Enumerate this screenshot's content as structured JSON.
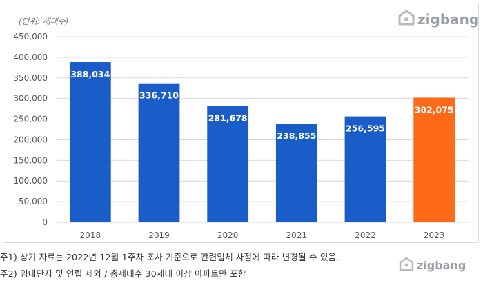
{
  "unit_label": "(단위: 세대수)",
  "brand": {
    "name": "zigbang",
    "icon": "zigbang-house-logo",
    "color": "#9aa0a6"
  },
  "notes": [
    "주1) 상기 자료는 2022년 12월 1주차 조사 기준으로 관련업체 사정에 따라 변경될 수 있음.",
    "주2) 임대단지 및 연립 제외 / 총세대수 30세대 이상 아파트만 포함"
  ],
  "colors": {
    "bar": "#1a5dc8",
    "highlight": "#ff6a1a",
    "grid": "#d9d9d9"
  },
  "chart_data": {
    "type": "bar",
    "title": "",
    "xlabel": "",
    "ylabel": "",
    "categories": [
      "2018",
      "2019",
      "2020",
      "2021",
      "2022",
      "2023"
    ],
    "values": [
      388034,
      336710,
      281678,
      238855,
      256595,
      302075
    ],
    "data_labels": [
      "388,034",
      "336,710",
      "281,678",
      "238,855",
      "256,595",
      "302,075"
    ],
    "highlight_index": 5,
    "ylim": [
      0,
      450000
    ],
    "yticks": [
      0,
      50000,
      100000,
      150000,
      200000,
      250000,
      300000,
      350000,
      400000,
      450000
    ],
    "ytick_labels": [
      "0",
      "50,000",
      "100,000",
      "150,000",
      "200,000",
      "250,000",
      "300,000",
      "350,000",
      "400,000",
      "450,000"
    ],
    "grid": true,
    "legend": "none"
  }
}
